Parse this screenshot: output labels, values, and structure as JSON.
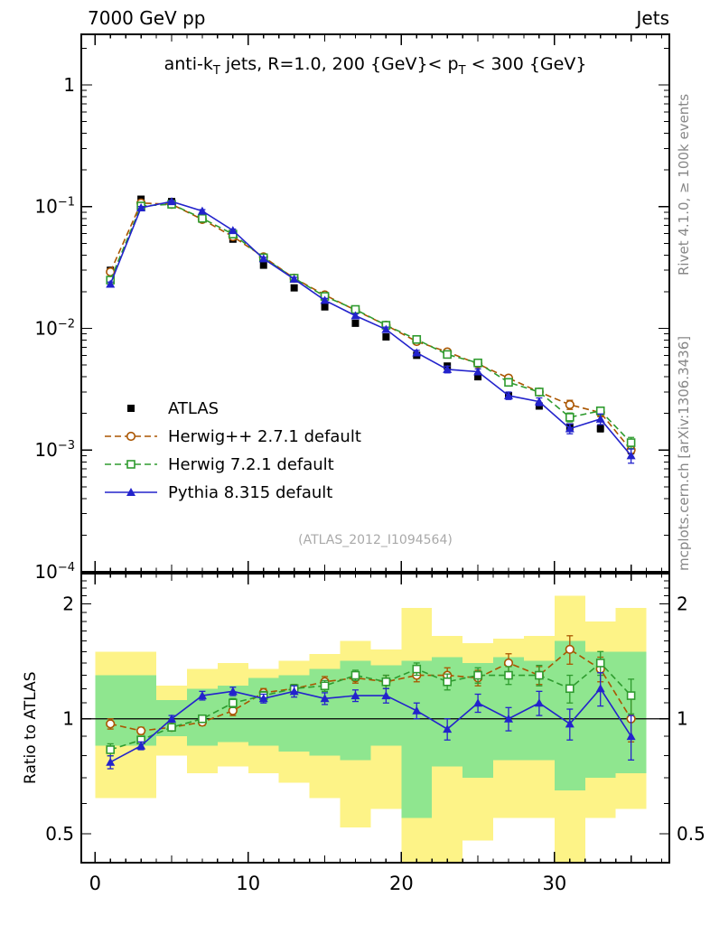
{
  "header": {
    "left": "7000 GeV pp",
    "right": "Jets"
  },
  "side_labels": {
    "top_right": "Rivet 4.1.0, ≥ 100k events",
    "bottom_right": "mcplots.cern.ch [arXiv:1306.3436]"
  },
  "watermark": "(ATLAS_2012_I1094564)",
  "chart_data": {
    "type": "line",
    "title_plain": "anti-kT jets, R=1.0, 200 {GeV}< pT < 300 {GeV}",
    "title_parts": [
      {
        "t": "anti-k"
      },
      {
        "t": "T",
        "sub": true
      },
      {
        "t": " jets, R=1.0, 200 {GeV}< p"
      },
      {
        "t": "T",
        "sub": true
      },
      {
        "t": " < 300 {GeV}"
      }
    ],
    "x": [
      1,
      3,
      5,
      7,
      9,
      11,
      13,
      15,
      17,
      19,
      21,
      23,
      25,
      27,
      29,
      31,
      33,
      35
    ],
    "xlim": [
      -0.9,
      37.5
    ],
    "x_major_ticks": [
      0,
      10,
      20,
      30
    ],
    "main_panel": {
      "ylog": true,
      "ylim": [
        0.0001,
        2.6
      ],
      "ytick_labels": [
        "1",
        "10⁻¹",
        "10⁻²",
        "10⁻³",
        "10⁻⁴"
      ],
      "atlas_rel_errors": [
        0.05,
        0.02,
        0.02,
        0.02,
        0.02,
        0.02,
        0.03,
        0.03,
        0.03,
        0.03,
        0.04,
        0.04,
        0.04,
        0.05,
        0.05,
        0.06,
        0.06,
        0.07
      ],
      "series": [
        {
          "name": "ATLAS",
          "color": "#000000",
          "marker": "square_filled",
          "line": "none",
          "values": [
            0.03,
            0.115,
            0.11,
            0.08,
            0.054,
            0.033,
            0.0215,
            0.015,
            0.011,
            0.0085,
            0.006,
            0.0049,
            0.004,
            0.0028,
            0.0023,
            0.00155,
            0.0015,
            0.001
          ]
        },
        {
          "name": "Herwig++ 2.7.1 default",
          "color": "#aa5500",
          "marker": "circle_open",
          "line": "dashed",
          "values": [
            0.0291,
            0.107,
            0.1045,
            0.0784,
            0.0567,
            0.0386,
            0.0258,
            0.0188,
            0.0141,
            0.0106,
            0.0078,
            0.0064,
            0.0051,
            0.0039,
            0.003,
            0.00236,
            0.00203,
            0.001
          ]
        },
        {
          "name": "Herwig 7.2.1 default",
          "color": "#2e9b2e",
          "marker": "square_open",
          "line": "dashed",
          "values": [
            0.0249,
            0.1012,
            0.1045,
            0.08,
            0.0594,
            0.038,
            0.0258,
            0.0183,
            0.0143,
            0.0106,
            0.0081,
            0.0061,
            0.0052,
            0.0036,
            0.003,
            0.00186,
            0.0021,
            0.00115
          ]
        },
        {
          "name": "Pythia 8.315 default",
          "color": "#2323cc",
          "marker": "triangle_filled",
          "line": "solid",
          "values": [
            0.0231,
            0.0978,
            0.11,
            0.092,
            0.0637,
            0.0373,
            0.0254,
            0.017,
            0.0127,
            0.0098,
            0.0063,
            0.0046,
            0.0044,
            0.0028,
            0.0025,
            0.0015,
            0.0018,
            0.0009
          ]
        }
      ]
    },
    "ratio_panel": {
      "ylabel": "Ratio to ATLAS",
      "ylog": true,
      "ylim": [
        0.42,
        2.4
      ],
      "yticks": [
        0.5,
        1,
        2
      ],
      "band_edges": [
        0,
        2,
        4,
        6,
        8,
        10,
        12,
        14,
        16,
        18,
        20,
        22,
        24,
        26,
        28,
        30,
        32,
        34,
        36
      ],
      "band_colors": {
        "outer": "#fdf387",
        "inner": "#8fe68f"
      },
      "yellow_band": [
        [
          0.62,
          1.5
        ],
        [
          0.62,
          1.5
        ],
        [
          0.8,
          1.22
        ],
        [
          0.72,
          1.35
        ],
        [
          0.75,
          1.4
        ],
        [
          0.72,
          1.35
        ],
        [
          0.68,
          1.42
        ],
        [
          0.62,
          1.48
        ],
        [
          0.52,
          1.6
        ],
        [
          0.58,
          1.52
        ],
        [
          0.42,
          1.95
        ],
        [
          0.42,
          1.65
        ],
        [
          0.48,
          1.58
        ],
        [
          0.55,
          1.62
        ],
        [
          0.55,
          1.65
        ],
        [
          0.42,
          2.1
        ],
        [
          0.55,
          1.8
        ],
        [
          0.58,
          1.95
        ]
      ],
      "green_band": [
        [
          0.85,
          1.3
        ],
        [
          0.85,
          1.3
        ],
        [
          0.9,
          1.12
        ],
        [
          0.85,
          1.2
        ],
        [
          0.87,
          1.22
        ],
        [
          0.85,
          1.28
        ],
        [
          0.82,
          1.3
        ],
        [
          0.8,
          1.35
        ],
        [
          0.78,
          1.42
        ],
        [
          0.85,
          1.38
        ],
        [
          0.55,
          1.42
        ],
        [
          0.75,
          1.45
        ],
        [
          0.7,
          1.4
        ],
        [
          0.78,
          1.45
        ],
        [
          0.78,
          1.42
        ],
        [
          0.65,
          1.6
        ],
        [
          0.7,
          1.5
        ],
        [
          0.72,
          1.5
        ]
      ],
      "series": [
        {
          "name": "Herwig++ 2.7.1 default",
          "color": "#aa5500",
          "marker": "circle_open",
          "line": "dashed",
          "values": [
            0.97,
            0.93,
            0.95,
            0.98,
            1.05,
            1.17,
            1.2,
            1.25,
            1.28,
            1.25,
            1.3,
            1.3,
            1.28,
            1.4,
            1.3,
            1.52,
            1.35,
            1.0
          ],
          "errors": [
            0.03,
            0.02,
            0.02,
            0.02,
            0.03,
            0.03,
            0.03,
            0.04,
            0.04,
            0.05,
            0.05,
            0.06,
            0.06,
            0.08,
            0.07,
            0.13,
            0.1,
            0.13
          ]
        },
        {
          "name": "Herwig 7.2.1 default",
          "color": "#2e9b2e",
          "marker": "square_open",
          "line": "dashed",
          "values": [
            0.83,
            0.88,
            0.95,
            1.0,
            1.1,
            1.15,
            1.2,
            1.22,
            1.3,
            1.25,
            1.35,
            1.25,
            1.3,
            1.3,
            1.3,
            1.2,
            1.4,
            1.15
          ],
          "errors": [
            0.03,
            0.02,
            0.02,
            0.02,
            0.03,
            0.03,
            0.03,
            0.04,
            0.04,
            0.05,
            0.05,
            0.06,
            0.06,
            0.07,
            0.08,
            0.1,
            0.1,
            0.12
          ]
        },
        {
          "name": "Pythia 8.315 default",
          "color": "#2323cc",
          "marker": "triangle_filled",
          "line": "solid",
          "values": [
            0.77,
            0.85,
            1.0,
            1.15,
            1.18,
            1.13,
            1.18,
            1.13,
            1.15,
            1.15,
            1.05,
            0.94,
            1.1,
            1.0,
            1.1,
            0.97,
            1.2,
            0.9
          ],
          "errors": [
            0.03,
            0.02,
            0.02,
            0.03,
            0.03,
            0.03,
            0.04,
            0.04,
            0.04,
            0.05,
            0.05,
            0.06,
            0.06,
            0.07,
            0.08,
            0.09,
            0.12,
            0.12
          ]
        }
      ]
    },
    "legend_items": [
      "ATLAS",
      "Herwig++ 2.7.1 default",
      "Herwig 7.2.1 default",
      "Pythia 8.315 default"
    ]
  }
}
